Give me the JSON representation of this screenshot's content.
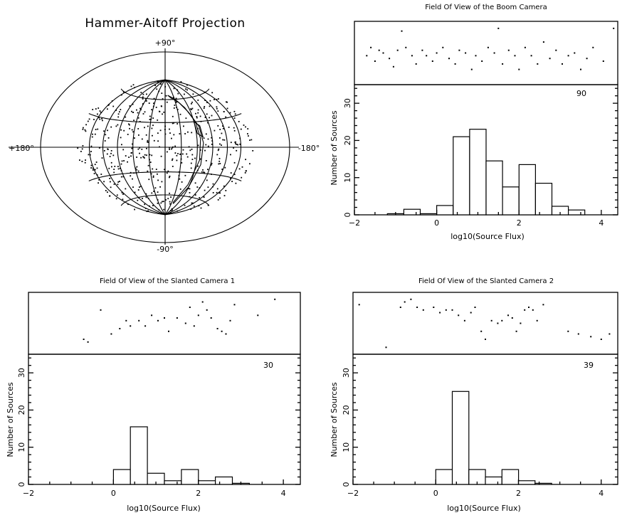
{
  "chart_data": [
    {
      "type": "scatter",
      "title": "Hammer-Aitoff Projection",
      "projection": "hammer-aitoff",
      "labels": {
        "top": "+90°",
        "bottom": "-90°",
        "left": "+180°",
        "right": "-180°"
      },
      "grid": {
        "meridians_deg": [
          -150,
          -120,
          -90,
          -60,
          -30,
          0,
          30,
          60,
          90,
          120,
          150
        ],
        "parallels_deg": [
          -60,
          -30,
          0,
          30,
          60
        ]
      },
      "n_points": 520,
      "fov_outline_color": "#000000"
    },
    {
      "type": "bar",
      "title": "Field Of View of the Boom Camera",
      "count_label": "90",
      "xlabel": "log10(Source Flux)",
      "ylabel": "Number of Sources",
      "xlim": [
        -2,
        4.4
      ],
      "ylim": [
        0,
        35
      ],
      "xticks": [
        -2,
        0,
        2,
        4
      ],
      "yticks": [
        0,
        10,
        20,
        30
      ],
      "bin_width": 0.4,
      "bins": [
        {
          "x0": -1.2,
          "value": 0.3
        },
        {
          "x0": -0.8,
          "value": 1.5
        },
        {
          "x0": -0.4,
          "value": 0.3
        },
        {
          "x0": 0.0,
          "value": 2.5
        },
        {
          "x0": 0.4,
          "value": 21
        },
        {
          "x0": 0.8,
          "value": 23
        },
        {
          "x0": 1.2,
          "value": 14.5
        },
        {
          "x0": 1.6,
          "value": 7.5
        },
        {
          "x0": 2.0,
          "value": 13.5
        },
        {
          "x0": 2.4,
          "value": 8.5
        },
        {
          "x0": 2.8,
          "value": 2.3
        },
        {
          "x0": 3.2,
          "value": 1.3
        }
      ],
      "strip_points": [
        [
          -1.7,
          0.45
        ],
        [
          -1.6,
          0.6
        ],
        [
          -1.5,
          0.35
        ],
        [
          -1.4,
          0.55
        ],
        [
          -1.3,
          0.5
        ],
        [
          -1.15,
          0.4
        ],
        [
          -1.05,
          0.25
        ],
        [
          -0.95,
          0.55
        ],
        [
          -0.85,
          0.9
        ],
        [
          -0.75,
          0.6
        ],
        [
          -0.6,
          0.45
        ],
        [
          -0.5,
          0.3
        ],
        [
          -0.35,
          0.55
        ],
        [
          -0.25,
          0.45
        ],
        [
          -0.1,
          0.35
        ],
        [
          0.0,
          0.5
        ],
        [
          0.15,
          0.6
        ],
        [
          0.3,
          0.4
        ],
        [
          0.45,
          0.3
        ],
        [
          0.55,
          0.55
        ],
        [
          0.7,
          0.5
        ],
        [
          0.85,
          0.2
        ],
        [
          0.95,
          0.45
        ],
        [
          1.1,
          0.35
        ],
        [
          1.25,
          0.6
        ],
        [
          1.4,
          0.5
        ],
        [
          1.5,
          0.95
        ],
        [
          1.6,
          0.3
        ],
        [
          1.75,
          0.55
        ],
        [
          1.9,
          0.45
        ],
        [
          2.0,
          0.2
        ],
        [
          2.15,
          0.6
        ],
        [
          2.3,
          0.45
        ],
        [
          2.45,
          0.3
        ],
        [
          2.6,
          0.7
        ],
        [
          2.75,
          0.4
        ],
        [
          2.9,
          0.55
        ],
        [
          3.05,
          0.3
        ],
        [
          3.2,
          0.45
        ],
        [
          3.35,
          0.5
        ],
        [
          3.5,
          0.2
        ],
        [
          3.65,
          0.4
        ],
        [
          3.8,
          0.6
        ],
        [
          4.05,
          0.35
        ],
        [
          4.3,
          0.95
        ]
      ]
    },
    {
      "type": "bar",
      "title": "Field Of View of the Slanted Camera 1",
      "count_label": "30",
      "xlabel": "log10(Source Flux)",
      "ylabel": "Number of Sources",
      "xlim": [
        -2,
        4.4
      ],
      "ylim": [
        0,
        35
      ],
      "xticks": [
        -2,
        0,
        2,
        4
      ],
      "yticks": [
        0,
        10,
        20,
        30
      ],
      "bin_width": 0.4,
      "bins": [
        {
          "x0": 0.0,
          "value": 4
        },
        {
          "x0": 0.4,
          "value": 15.5
        },
        {
          "x0": 0.8,
          "value": 3
        },
        {
          "x0": 1.2,
          "value": 1
        },
        {
          "x0": 1.6,
          "value": 4
        },
        {
          "x0": 2.0,
          "value": 1
        },
        {
          "x0": 2.4,
          "value": 2
        },
        {
          "x0": 2.8,
          "value": 0.3
        }
      ],
      "strip_points": [
        [
          -0.7,
          0.2
        ],
        [
          -0.6,
          0.15
        ],
        [
          -0.3,
          0.75
        ],
        [
          -0.05,
          0.3
        ],
        [
          0.15,
          0.4
        ],
        [
          0.3,
          0.55
        ],
        [
          0.4,
          0.45
        ],
        [
          0.6,
          0.55
        ],
        [
          0.75,
          0.45
        ],
        [
          0.9,
          0.65
        ],
        [
          1.05,
          0.55
        ],
        [
          1.2,
          0.6
        ],
        [
          1.3,
          0.35
        ],
        [
          1.5,
          0.6
        ],
        [
          1.7,
          0.5
        ],
        [
          1.8,
          0.8
        ],
        [
          1.9,
          0.45
        ],
        [
          2.0,
          0.65
        ],
        [
          2.1,
          0.9
        ],
        [
          2.2,
          0.75
        ],
        [
          2.3,
          0.6
        ],
        [
          2.45,
          0.4
        ],
        [
          2.55,
          0.35
        ],
        [
          2.65,
          0.3
        ],
        [
          2.75,
          0.55
        ],
        [
          2.85,
          0.85
        ],
        [
          3.4,
          0.65
        ],
        [
          3.8,
          0.95
        ]
      ]
    },
    {
      "type": "bar",
      "title": "Field Of View of the Slanted Camera 2",
      "count_label": "39",
      "xlabel": "log10(Source Flux)",
      "ylabel": "Number of Sources",
      "xlim": [
        -2,
        4.4
      ],
      "ylim": [
        0,
        35
      ],
      "xticks": [
        -2,
        0,
        2,
        4
      ],
      "yticks": [
        0,
        10,
        20,
        30
      ],
      "bin_width": 0.4,
      "bins": [
        {
          "x0": 0.0,
          "value": 4
        },
        {
          "x0": 0.4,
          "value": 25
        },
        {
          "x0": 0.8,
          "value": 4
        },
        {
          "x0": 1.2,
          "value": 2
        },
        {
          "x0": 1.6,
          "value": 4
        },
        {
          "x0": 2.0,
          "value": 1
        },
        {
          "x0": 2.4,
          "value": 0.3
        }
      ],
      "strip_points": [
        [
          -1.85,
          0.85
        ],
        [
          -1.2,
          0.05
        ],
        [
          -0.85,
          0.8
        ],
        [
          -0.75,
          0.9
        ],
        [
          -0.6,
          0.95
        ],
        [
          -0.45,
          0.8
        ],
        [
          -0.3,
          0.75
        ],
        [
          -0.05,
          0.8
        ],
        [
          0.1,
          0.7
        ],
        [
          0.25,
          0.75
        ],
        [
          0.4,
          0.75
        ],
        [
          0.55,
          0.65
        ],
        [
          0.7,
          0.55
        ],
        [
          0.85,
          0.7
        ],
        [
          0.95,
          0.8
        ],
        [
          1.1,
          0.35
        ],
        [
          1.2,
          0.2
        ],
        [
          1.35,
          0.55
        ],
        [
          1.5,
          0.5
        ],
        [
          1.6,
          0.55
        ],
        [
          1.75,
          0.65
        ],
        [
          1.85,
          0.6
        ],
        [
          1.95,
          0.35
        ],
        [
          2.05,
          0.5
        ],
        [
          2.15,
          0.75
        ],
        [
          2.25,
          0.8
        ],
        [
          2.35,
          0.75
        ],
        [
          2.45,
          0.55
        ],
        [
          2.6,
          0.85
        ],
        [
          3.2,
          0.35
        ],
        [
          3.45,
          0.3
        ],
        [
          3.75,
          0.25
        ],
        [
          4.0,
          0.2
        ],
        [
          4.2,
          0.3
        ]
      ]
    }
  ]
}
